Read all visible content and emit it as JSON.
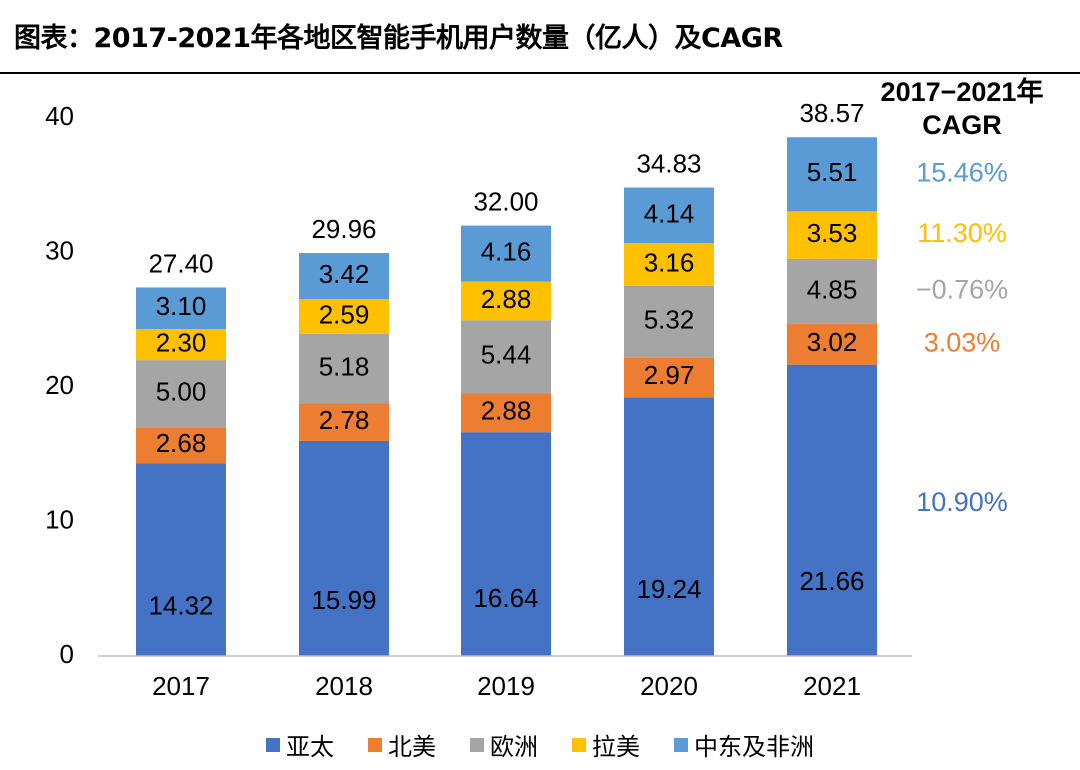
{
  "title": "图表：2017-2021年各地区智能手机用户数量（亿人）及CAGR",
  "chart_data": {
    "type": "bar",
    "stacked": true,
    "categories": [
      "2017",
      "2018",
      "2019",
      "2020",
      "2021"
    ],
    "series": [
      {
        "name": "亚太",
        "color": "#4472C4",
        "values": [
          14.32,
          15.99,
          16.64,
          19.24,
          21.66
        ],
        "labels": [
          "14.32",
          "15.99",
          "16.64",
          "19.24",
          "21.66"
        ],
        "cagr": "10.90%"
      },
      {
        "name": "北美",
        "color": "#ED7D31",
        "values": [
          2.68,
          2.78,
          2.88,
          2.97,
          3.02
        ],
        "labels": [
          "2.68",
          "2.78",
          "2.88",
          "2.97",
          "3.02"
        ],
        "cagr": "3.03%"
      },
      {
        "name": "欧洲",
        "color": "#A5A5A5",
        "values": [
          5.0,
          5.18,
          5.44,
          5.32,
          4.85
        ],
        "labels": [
          "5.00",
          "5.18",
          "5.44",
          "5.32",
          "4.85"
        ],
        "cagr": "−0.76%"
      },
      {
        "name": "拉美",
        "color": "#FFC000",
        "values": [
          2.3,
          2.59,
          2.88,
          3.16,
          3.53
        ],
        "labels": [
          "2.30",
          "2.59",
          "2.88",
          "3.16",
          "3.53"
        ],
        "cagr": "11.30%"
      },
      {
        "name": "中东及非洲",
        "color": "#5B9BD5",
        "values": [
          3.1,
          3.42,
          4.16,
          4.14,
          5.51
        ],
        "labels": [
          "3.10",
          "3.42",
          "4.16",
          "4.14",
          "5.51"
        ],
        "cagr": "15.46%"
      }
    ],
    "totals": [
      "27.40",
      "29.96",
      "32.00",
      "34.83",
      "38.57"
    ],
    "total_values": [
      27.4,
      29.96,
      32.0,
      34.83,
      38.57
    ],
    "ylim": [
      0,
      40
    ],
    "yticks": [
      0,
      10,
      20,
      30,
      40
    ],
    "cagr_header": [
      "2017−2021年",
      "CAGR"
    ],
    "legend_position": "bottom",
    "grid": false
  }
}
